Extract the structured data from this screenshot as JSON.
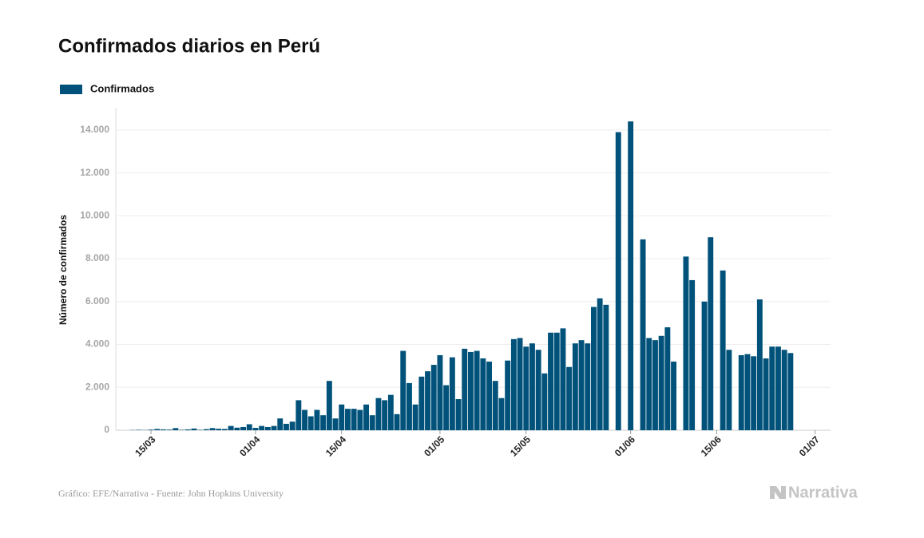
{
  "chart_data": {
    "type": "bar",
    "title": "Confirmados diarios en Perú",
    "y_label": "Número de confirmados",
    "source": "Gráfico: EFE/Narrativa - Fuente: John Hopkins University",
    "brand": "Narrativa",
    "legend": "top-left",
    "grid": true,
    "categories": [
      null,
      null,
      null,
      null,
      null,
      null,
      "15/03",
      null,
      null,
      null,
      null,
      null,
      null,
      null,
      null,
      null,
      null,
      null,
      null,
      null,
      null,
      null,
      null,
      "01/04",
      null,
      null,
      null,
      null,
      null,
      null,
      null,
      null,
      null,
      null,
      null,
      null,
      null,
      "15/04",
      null,
      null,
      null,
      null,
      null,
      null,
      null,
      null,
      null,
      null,
      null,
      null,
      null,
      null,
      null,
      "01/05",
      null,
      null,
      null,
      null,
      null,
      null,
      null,
      null,
      null,
      null,
      null,
      null,
      null,
      "15/05",
      null,
      null,
      null,
      null,
      null,
      null,
      null,
      null,
      null,
      null,
      null,
      null,
      null,
      null,
      null,
      null,
      "01/06",
      null,
      null,
      null,
      null,
      null,
      null,
      null,
      null,
      null,
      null,
      null,
      null,
      null,
      "15/06",
      null,
      null,
      null,
      null,
      null,
      null,
      null,
      null,
      null,
      null,
      null,
      null,
      null,
      null,
      null,
      "01/07"
    ],
    "series": [
      {
        "name": "Confirmados",
        "color": "#01527a",
        "values": [
          0,
          0,
          0,
          10,
          20,
          10,
          30,
          60,
          40,
          30,
          100,
          20,
          40,
          80,
          20,
          50,
          100,
          70,
          60,
          200,
          120,
          150,
          280,
          110,
          200,
          150,
          200,
          550,
          300,
          400,
          1400,
          950,
          650,
          950,
          700,
          2300,
          550,
          1200,
          1000,
          1000,
          950,
          1200,
          700,
          1500,
          1400,
          1650,
          750,
          3700,
          2200,
          1200,
          2500,
          2750,
          3050,
          3500,
          2100,
          3400,
          1450,
          3800,
          3650,
          3700,
          3350,
          3200,
          2300,
          1500,
          3250,
          4250,
          4300,
          3900,
          4050,
          3750,
          2650,
          4550,
          4550,
          4750,
          2950,
          4050,
          4200,
          4050,
          5750,
          6150,
          5850,
          null,
          13900,
          null,
          14400,
          null,
          8900,
          4300,
          4200,
          4400,
          4800,
          3200,
          null,
          8100,
          7000,
          null,
          6000,
          9000,
          null,
          7450,
          3750,
          null,
          3500,
          3550,
          3450,
          6100,
          3350,
          3900,
          3900,
          3750,
          3600,
          null,
          null,
          null,
          null
        ]
      }
    ],
    "ylim": [
      0,
      15000
    ],
    "yticks": [
      0,
      {
        "value": 2000,
        "label": "2.000"
      },
      {
        "value": 4000,
        "label": "4.000"
      },
      {
        "value": 6000,
        "label": "6.000"
      },
      {
        "value": 8000,
        "label": "8.000"
      },
      {
        "value": 10000,
        "label": "10.000"
      },
      {
        "value": 12000,
        "label": "12.000"
      },
      {
        "value": 14000,
        "label": "14.000"
      }
    ]
  }
}
